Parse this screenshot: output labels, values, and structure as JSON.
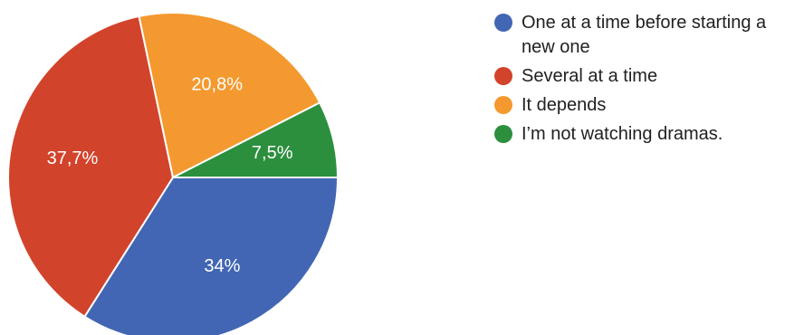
{
  "chart_data": {
    "type": "pie",
    "slices": [
      {
        "label": "One at a time before starting a new one",
        "value": 34,
        "display": "34%",
        "color": "#4266b3"
      },
      {
        "label": "Several at a time",
        "value": 37.7,
        "display": "37,7%",
        "color": "#d2432c"
      },
      {
        "label": "It depends",
        "value": 20.8,
        "display": "20,8%",
        "color": "#f4992f"
      },
      {
        "label": "I’m not watching dramas.",
        "value": 7.5,
        "display": "7,5%",
        "color": "#2c8f3e"
      }
    ],
    "legend_position": "right"
  }
}
